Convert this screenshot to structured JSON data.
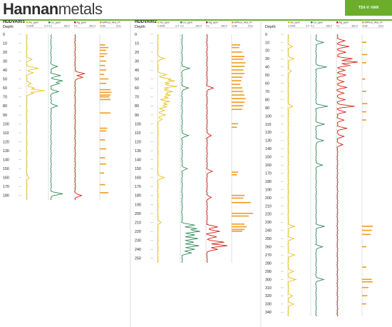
{
  "header": {
    "logo_part1": "Hannan",
    "logo_part2": "metals",
    "ticker": "TSX-V: HAN"
  },
  "colors": {
    "accent_green": "#6cae2c",
    "au": "#e8c21a",
    "cu": "#2e8b57",
    "ag": "#d11f0e",
    "wpal": "#f19a1e"
  },
  "chart_data": [
    {
      "type": "line",
      "hole": "HDDVA001",
      "ylabel": "Depth",
      "ylim": [
        0,
        185
      ],
      "yticks": [
        0,
        10,
        20,
        30,
        40,
        50,
        60,
        70,
        80,
        90,
        100,
        110,
        120,
        130,
        140,
        150,
        160,
        170,
        180
      ],
      "tracks": [
        {
          "name": "Au_ppm",
          "min": "0.0005",
          "max": "0.4",
          "color": "#e8c21a",
          "baseline": 0.02,
          "spikes": [
            [
              28,
              0.25
            ],
            [
              38,
              0.55
            ],
            [
              43,
              0.3
            ],
            [
              55,
              0.2
            ],
            [
              60,
              0.35
            ],
            [
              63,
              0.85
            ],
            [
              66,
              0.3
            ],
            [
              160,
              0.12
            ]
          ]
        },
        {
          "name": "Cu_ppm",
          "min": "0.2",
          "max": "250.0",
          "color": "#2e8b57",
          "baseline": 0.12,
          "spikes": [
            [
              36,
              0.3
            ],
            [
              46,
              0.45
            ],
            [
              52,
              0.55
            ],
            [
              55,
              0.4
            ],
            [
              64,
              0.35
            ],
            [
              80,
              0.3
            ],
            [
              178,
              0.55
            ]
          ]
        },
        {
          "name": "Ag_ppm",
          "min": "0.1",
          "max": "852.0",
          "color": "#d11f0e",
          "baseline": 0.05,
          "spikes": [
            [
              44,
              0.45
            ],
            [
              48,
              0.35
            ],
            [
              180,
              0.3
            ]
          ]
        },
        {
          "name": "WPhce_Abs_Pl",
          "min": "2198",
          "max": "2211",
          "color": "#f19a1e",
          "type": "bars",
          "bars": [
            [
              12,
              0.25
            ],
            [
              15,
              0.4
            ],
            [
              18,
              0.3
            ],
            [
              22,
              0.35
            ],
            [
              25,
              0.2
            ],
            [
              30,
              0.3
            ],
            [
              35,
              0.25
            ],
            [
              40,
              0.3
            ],
            [
              45,
              0.2
            ],
            [
              50,
              0.4
            ],
            [
              55,
              0.3
            ],
            [
              62,
              0.5
            ],
            [
              65,
              0.55
            ],
            [
              68,
              0.5
            ],
            [
              70,
              0.45
            ],
            [
              73,
              0.5
            ],
            [
              88,
              0.5
            ],
            [
              105,
              0.35
            ],
            [
              108,
              0.3
            ],
            [
              118,
              0.25
            ],
            [
              128,
              0.3
            ],
            [
              138,
              0.25
            ],
            [
              145,
              0.3
            ],
            [
              155,
              0.2
            ],
            [
              168,
              0.25
            ],
            [
              177,
              0.4
            ]
          ]
        }
      ]
    },
    {
      "type": "line",
      "hole": "HDDVA002",
      "ylabel": "Depth",
      "ylim": [
        0,
        255
      ],
      "yticks": [
        0,
        10,
        20,
        30,
        40,
        50,
        60,
        70,
        80,
        90,
        100,
        110,
        120,
        130,
        140,
        150,
        160,
        170,
        180,
        190,
        200,
        210,
        220,
        230,
        240,
        250
      ],
      "tracks": [
        {
          "name": "Au_ppm",
          "min": "0.0005",
          "max": "0.4",
          "color": "#e8c21a",
          "baseline": 0.02,
          "spikes": [
            [
              27,
              0.3
            ],
            [
              45,
              0.4
            ],
            [
              50,
              0.6
            ],
            [
              52,
              0.8
            ],
            [
              55,
              0.55
            ],
            [
              58,
              0.9
            ],
            [
              61,
              0.5
            ],
            [
              64,
              0.7
            ],
            [
              66,
              0.45
            ],
            [
              68,
              0.6
            ],
            [
              71,
              0.5
            ],
            [
              75,
              0.55
            ],
            [
              78,
              0.45
            ],
            [
              81,
              0.4
            ],
            [
              85,
              0.3
            ],
            [
              90,
              0.35
            ],
            [
              95,
              0.2
            ],
            [
              160,
              0.3
            ],
            [
              210,
              0.15
            ]
          ]
        },
        {
          "name": "Cu_ppm",
          "min": "0.2",
          "max": "250.0",
          "color": "#2e8b57",
          "baseline": 0.08,
          "spikes": [
            [
              38,
              0.35
            ],
            [
              60,
              0.3
            ],
            [
              113,
              0.3
            ],
            [
              150,
              0.25
            ],
            [
              213,
              0.6
            ],
            [
              217,
              0.7
            ],
            [
              220,
              0.85
            ],
            [
              224,
              0.6
            ],
            [
              228,
              0.75
            ],
            [
              232,
              0.55
            ],
            [
              236,
              0.8
            ],
            [
              240,
              0.6
            ],
            [
              244,
              0.45
            ]
          ]
        },
        {
          "name": "Ag_ppm",
          "min": "0.1",
          "max": "852.0",
          "color": "#d11f0e",
          "baseline": 0.05,
          "spikes": [
            [
              60,
              0.3
            ],
            [
              113,
              0.2
            ],
            [
              153,
              0.25
            ],
            [
              182,
              0.2
            ],
            [
              215,
              0.5
            ],
            [
              220,
              0.6
            ],
            [
              226,
              0.45
            ],
            [
              232,
              0.8
            ],
            [
              236,
              1.0
            ],
            [
              240,
              0.5
            ]
          ]
        },
        {
          "name": "WPhce_Abs_Pl",
          "min": "2198",
          "max": "2211",
          "color": "#f19a1e",
          "type": "bars",
          "bars": [
            [
              12,
              0.4
            ],
            [
              15,
              0.35
            ],
            [
              20,
              0.5
            ],
            [
              25,
              0.6
            ],
            [
              28,
              0.55
            ],
            [
              32,
              0.65
            ],
            [
              36,
              0.6
            ],
            [
              40,
              0.55
            ],
            [
              44,
              0.6
            ],
            [
              48,
              0.5
            ],
            [
              52,
              0.45
            ],
            [
              56,
              0.4
            ],
            [
              60,
              0.5
            ],
            [
              64,
              0.55
            ],
            [
              68,
              0.6
            ],
            [
              72,
              0.65
            ],
            [
              76,
              0.6
            ],
            [
              80,
              0.55
            ],
            [
              84,
              0.5
            ],
            [
              100,
              0.3
            ],
            [
              104,
              0.25
            ],
            [
              154,
              0.3
            ],
            [
              157,
              0.25
            ],
            [
              180,
              0.6
            ],
            [
              183,
              0.55
            ],
            [
              188,
              0.9
            ],
            [
              200,
              1.0
            ],
            [
              203,
              0.8
            ],
            [
              212,
              0.6
            ],
            [
              215,
              0.7
            ],
            [
              218,
              0.6
            ],
            [
              220,
              0.5
            ]
          ]
        }
      ]
    },
    {
      "type": "line",
      "hole": "",
      "ylabel": "Depth",
      "ylim": [
        0,
        345
      ],
      "yticks": [
        0,
        10,
        20,
        30,
        40,
        50,
        60,
        70,
        80,
        90,
        100,
        110,
        120,
        130,
        140,
        150,
        160,
        170,
        180,
        190,
        200,
        210,
        220,
        230,
        240,
        250,
        260,
        270,
        280,
        290,
        300,
        310,
        320,
        330,
        340
      ],
      "tracks": [
        {
          "name": "Au_ppm",
          "min": "0.0005",
          "max": "0.4",
          "color": "#e8c21a",
          "baseline": 0.02,
          "spikes": [
            [
              15,
              0.2
            ],
            [
              30,
              0.25
            ],
            [
              45,
              0.15
            ],
            [
              88,
              0.2
            ],
            [
              235,
              0.3
            ],
            [
              250,
              0.25
            ],
            [
              270,
              0.3
            ],
            [
              290,
              0.25
            ],
            [
              300,
              0.35
            ],
            [
              320,
              0.2
            ],
            [
              330,
              0.25
            ]
          ]
        },
        {
          "name": "Cu_ppm",
          "min": "0.2",
          "max": "250.0",
          "color": "#2e8b57",
          "baseline": 0.25,
          "spikes": [
            [
              10,
              0.35
            ],
            [
              40,
              0.5
            ],
            [
              88,
              0.55
            ],
            [
              110,
              0.4
            ],
            [
              130,
              0.35
            ],
            [
              160,
              0.3
            ],
            [
              235,
              0.4
            ],
            [
              260,
              0.3
            ],
            [
              300,
              0.35
            ]
          ]
        },
        {
          "name": "Ag_ppm",
          "min": "0.1",
          "max": "852.0",
          "color": "#d11f0e",
          "baseline": 0.05,
          "spikes": [
            [
              8,
              0.35
            ],
            [
              15,
              0.55
            ],
            [
              22,
              0.4
            ],
            [
              30,
              0.7
            ],
            [
              34,
              1.0
            ],
            [
              38,
              0.6
            ],
            [
              44,
              0.35
            ],
            [
              50,
              0.4
            ],
            [
              58,
              0.3
            ],
            [
              65,
              0.45
            ],
            [
              72,
              0.3
            ],
            [
              80,
              0.35
            ],
            [
              88,
              0.8
            ],
            [
              95,
              0.4
            ],
            [
              105,
              0.3
            ],
            [
              115,
              0.45
            ],
            [
              125,
              0.3
            ],
            [
              135,
              0.25
            ]
          ]
        },
        {
          "name": "WPhce_Abs_Pl",
          "min": "2198",
          "max": "2211",
          "color": "#f19a1e",
          "type": "bars",
          "bars": [
            [
              10,
              0.2
            ],
            [
              25,
              0.25
            ],
            [
              35,
              0.2
            ],
            [
              55,
              0.15
            ],
            [
              70,
              0.2
            ],
            [
              85,
              0.25
            ],
            [
              95,
              0.2
            ],
            [
              105,
              0.2
            ],
            [
              235,
              0.5
            ],
            [
              240,
              0.45
            ],
            [
              245,
              0.4
            ],
            [
              260,
              0.2
            ],
            [
              285,
              0.2
            ],
            [
              300,
              0.45
            ],
            [
              303,
              0.5
            ],
            [
              310,
              0.3
            ],
            [
              320,
              0.25
            ],
            [
              330,
              0.2
            ]
          ]
        }
      ]
    }
  ],
  "layouts_note": ""
}
